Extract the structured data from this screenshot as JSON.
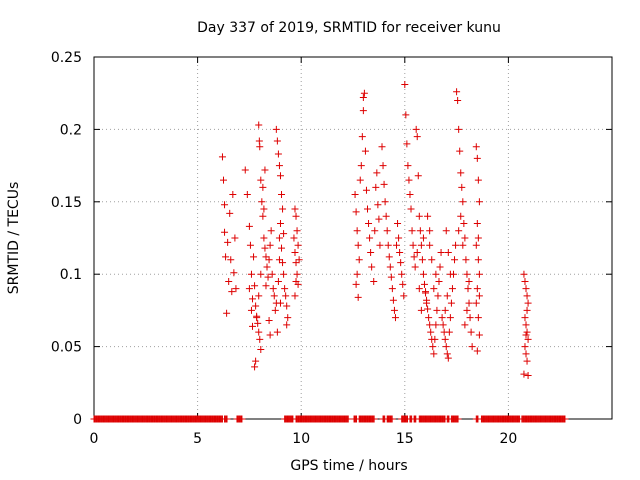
{
  "chart_data": {
    "type": "scatter",
    "title": "Day 337 of 2019, SRMTID for receiver kunu",
    "xlabel": "GPS time / hours",
    "ylabel": "SRMTID / TECUs",
    "xlim": [
      0,
      25
    ],
    "ylim": [
      0,
      0.25
    ],
    "xticks": [
      0,
      5,
      10,
      15,
      20
    ],
    "xtick_labels": [
      "0",
      "5",
      "10",
      "15",
      "20"
    ],
    "yticks": [
      0,
      0.05,
      0.1,
      0.15,
      0.2,
      0.25
    ],
    "ytick_labels": [
      "0",
      "0.05",
      "0.1",
      "0.15",
      "0.2",
      "0.25"
    ],
    "grid": true,
    "marker": "+",
    "color": "#dd0000",
    "series": [
      {
        "name": "SRMTID",
        "points": [
          [
            6.2,
            0.181
          ],
          [
            6.25,
            0.165
          ],
          [
            6.3,
            0.148
          ],
          [
            6.3,
            0.129
          ],
          [
            6.35,
            0.112
          ],
          [
            6.4,
            0.073
          ],
          [
            6.45,
            0.122
          ],
          [
            6.5,
            0.095
          ],
          [
            6.55,
            0.142
          ],
          [
            6.6,
            0.11
          ],
          [
            6.65,
            0.088
          ],
          [
            6.7,
            0.155
          ],
          [
            6.75,
            0.101
          ],
          [
            6.8,
            0.125
          ],
          [
            6.85,
            0.09
          ],
          [
            7.3,
            0.172
          ],
          [
            7.4,
            0.155
          ],
          [
            7.5,
            0.133
          ],
          [
            7.55,
            0.12
          ],
          [
            7.6,
            0.1
          ],
          [
            7.65,
            0.083
          ],
          [
            7.7,
            0.112
          ],
          [
            7.75,
            0.092
          ],
          [
            7.8,
            0.078
          ],
          [
            7.85,
            0.071
          ],
          [
            7.9,
            0.066
          ],
          [
            7.95,
            0.06
          ],
          [
            8.0,
            0.055
          ],
          [
            8.05,
            0.048
          ],
          [
            7.75,
            0.036
          ],
          [
            7.8,
            0.04
          ],
          [
            7.85,
            0.07
          ],
          [
            7.6,
            0.075
          ],
          [
            7.5,
            0.09
          ],
          [
            7.65,
            0.064
          ],
          [
            7.95,
            0.085
          ],
          [
            8.05,
            0.1
          ],
          [
            7.95,
            0.203
          ],
          [
            7.98,
            0.192
          ],
          [
            8.0,
            0.188
          ],
          [
            8.05,
            0.165
          ],
          [
            8.1,
            0.15
          ],
          [
            8.15,
            0.14
          ],
          [
            8.2,
            0.125
          ],
          [
            8.25,
            0.118
          ],
          [
            8.3,
            0.112
          ],
          [
            8.35,
            0.105
          ],
          [
            8.4,
            0.098
          ],
          [
            8.45,
            0.11
          ],
          [
            8.5,
            0.12
          ],
          [
            8.55,
            0.13
          ],
          [
            8.6,
            0.1
          ],
          [
            8.65,
            0.09
          ],
          [
            8.7,
            0.085
          ],
          [
            8.75,
            0.075
          ],
          [
            8.8,
            0.08
          ],
          [
            8.85,
            0.06
          ],
          [
            8.5,
            0.058
          ],
          [
            8.45,
            0.068
          ],
          [
            8.3,
            0.092
          ],
          [
            8.2,
            0.145
          ],
          [
            8.25,
            0.172
          ],
          [
            8.15,
            0.16
          ],
          [
            8.8,
            0.2
          ],
          [
            8.85,
            0.192
          ],
          [
            8.9,
            0.183
          ],
          [
            8.95,
            0.175
          ],
          [
            9.0,
            0.168
          ],
          [
            9.05,
            0.155
          ],
          [
            9.1,
            0.145
          ],
          [
            9.0,
            0.135
          ],
          [
            8.95,
            0.125
          ],
          [
            9.05,
            0.118
          ],
          [
            9.1,
            0.108
          ],
          [
            9.15,
            0.1
          ],
          [
            9.2,
            0.09
          ],
          [
            9.25,
            0.085
          ],
          [
            9.3,
            0.078
          ],
          [
            9.35,
            0.07
          ],
          [
            9.3,
            0.065
          ],
          [
            9.0,
            0.08
          ],
          [
            8.9,
            0.095
          ],
          [
            8.95,
            0.11
          ],
          [
            9.15,
            0.128
          ],
          [
            9.7,
            0.145
          ],
          [
            9.75,
            0.14
          ],
          [
            9.8,
            0.13
          ],
          [
            9.85,
            0.12
          ],
          [
            9.7,
            0.115
          ],
          [
            9.75,
            0.108
          ],
          [
            9.8,
            0.1
          ],
          [
            9.85,
            0.093
          ],
          [
            9.7,
            0.085
          ],
          [
            9.75,
            0.095
          ],
          [
            9.9,
            0.11
          ],
          [
            9.65,
            0.125
          ],
          [
            12.6,
            0.155
          ],
          [
            12.65,
            0.143
          ],
          [
            12.7,
            0.13
          ],
          [
            12.75,
            0.12
          ],
          [
            12.8,
            0.11
          ],
          [
            12.7,
            0.1
          ],
          [
            12.65,
            0.093
          ],
          [
            12.75,
            0.084
          ],
          [
            12.85,
            0.165
          ],
          [
            12.9,
            0.175
          ],
          [
            12.95,
            0.195
          ],
          [
            13.0,
            0.213
          ],
          [
            13.0,
            0.222
          ],
          [
            13.05,
            0.225
          ],
          [
            13.1,
            0.185
          ],
          [
            13.15,
            0.158
          ],
          [
            13.2,
            0.145
          ],
          [
            13.25,
            0.135
          ],
          [
            13.3,
            0.125
          ],
          [
            13.35,
            0.115
          ],
          [
            13.4,
            0.105
          ],
          [
            13.5,
            0.095
          ],
          [
            13.55,
            0.13
          ],
          [
            13.6,
            0.16
          ],
          [
            13.65,
            0.17
          ],
          [
            13.7,
            0.148
          ],
          [
            13.75,
            0.138
          ],
          [
            13.8,
            0.12
          ],
          [
            13.9,
            0.188
          ],
          [
            13.95,
            0.175
          ],
          [
            14.0,
            0.162
          ],
          [
            14.05,
            0.15
          ],
          [
            14.1,
            0.14
          ],
          [
            14.15,
            0.13
          ],
          [
            14.2,
            0.12
          ],
          [
            14.25,
            0.112
          ],
          [
            14.3,
            0.105
          ],
          [
            14.35,
            0.098
          ],
          [
            14.4,
            0.09
          ],
          [
            14.45,
            0.082
          ],
          [
            14.5,
            0.075
          ],
          [
            14.55,
            0.07
          ],
          [
            14.6,
            0.12
          ],
          [
            14.65,
            0.135
          ],
          [
            14.7,
            0.125
          ],
          [
            14.75,
            0.115
          ],
          [
            14.8,
            0.108
          ],
          [
            14.85,
            0.1
          ],
          [
            14.9,
            0.093
          ],
          [
            14.95,
            0.085
          ],
          [
            15.0,
            0.231
          ],
          [
            15.05,
            0.21
          ],
          [
            15.1,
            0.19
          ],
          [
            15.15,
            0.175
          ],
          [
            15.2,
            0.165
          ],
          [
            15.25,
            0.155
          ],
          [
            15.3,
            0.145
          ],
          [
            15.35,
            0.13
          ],
          [
            15.4,
            0.12
          ],
          [
            15.45,
            0.112
          ],
          [
            15.5,
            0.105
          ],
          [
            15.55,
            0.2
          ],
          [
            15.6,
            0.195
          ],
          [
            15.65,
            0.168
          ],
          [
            15.7,
            0.14
          ],
          [
            15.75,
            0.13
          ],
          [
            15.8,
            0.12
          ],
          [
            15.85,
            0.11
          ],
          [
            15.9,
            0.1
          ],
          [
            15.95,
            0.093
          ],
          [
            16.0,
            0.088
          ],
          [
            16.05,
            0.08
          ],
          [
            15.8,
            0.075
          ],
          [
            15.7,
            0.09
          ],
          [
            15.6,
            0.115
          ],
          [
            15.9,
            0.125
          ],
          [
            16.1,
            0.14
          ],
          [
            16.2,
            0.13
          ],
          [
            16.0,
            0.087
          ],
          [
            16.05,
            0.082
          ],
          [
            16.1,
            0.076
          ],
          [
            16.15,
            0.07
          ],
          [
            16.2,
            0.065
          ],
          [
            16.25,
            0.06
          ],
          [
            16.3,
            0.055
          ],
          [
            16.35,
            0.05
          ],
          [
            16.4,
            0.045
          ],
          [
            16.45,
            0.055
          ],
          [
            16.5,
            0.065
          ],
          [
            16.55,
            0.075
          ],
          [
            16.6,
            0.085
          ],
          [
            16.65,
            0.095
          ],
          [
            16.7,
            0.105
          ],
          [
            16.75,
            0.115
          ],
          [
            16.5,
            0.1
          ],
          [
            16.4,
            0.09
          ],
          [
            16.3,
            0.11
          ],
          [
            16.2,
            0.12
          ],
          [
            16.8,
            0.07
          ],
          [
            16.85,
            0.065
          ],
          [
            16.9,
            0.06
          ],
          [
            16.95,
            0.055
          ],
          [
            17.0,
            0.05
          ],
          [
            17.05,
            0.045
          ],
          [
            17.1,
            0.042
          ],
          [
            17.15,
            0.06
          ],
          [
            17.2,
            0.07
          ],
          [
            17.25,
            0.08
          ],
          [
            17.3,
            0.09
          ],
          [
            17.35,
            0.1
          ],
          [
            17.4,
            0.11
          ],
          [
            17.45,
            0.12
          ],
          [
            17.0,
            0.13
          ],
          [
            17.1,
            0.115
          ],
          [
            17.2,
            0.1
          ],
          [
            17.05,
            0.085
          ],
          [
            16.95,
            0.075
          ],
          [
            17.5,
            0.226
          ],
          [
            17.55,
            0.22
          ],
          [
            17.6,
            0.2
          ],
          [
            17.65,
            0.185
          ],
          [
            17.7,
            0.17
          ],
          [
            17.75,
            0.16
          ],
          [
            17.8,
            0.15
          ],
          [
            17.85,
            0.135
          ],
          [
            17.9,
            0.125
          ],
          [
            17.95,
            0.11
          ],
          [
            18.0,
            0.1
          ],
          [
            18.05,
            0.09
          ],
          [
            18.1,
            0.08
          ],
          [
            18.15,
            0.07
          ],
          [
            18.2,
            0.06
          ],
          [
            18.25,
            0.05
          ],
          [
            17.7,
            0.14
          ],
          [
            17.6,
            0.13
          ],
          [
            17.8,
            0.12
          ],
          [
            18.0,
            0.075
          ],
          [
            17.9,
            0.065
          ],
          [
            18.1,
            0.095
          ],
          [
            18.45,
            0.188
          ],
          [
            18.5,
            0.18
          ],
          [
            18.55,
            0.165
          ],
          [
            18.6,
            0.15
          ],
          [
            18.5,
            0.135
          ],
          [
            18.45,
            0.12
          ],
          [
            18.55,
            0.11
          ],
          [
            18.6,
            0.1
          ],
          [
            18.5,
            0.09
          ],
          [
            18.45,
            0.08
          ],
          [
            18.55,
            0.07
          ],
          [
            18.6,
            0.058
          ],
          [
            18.5,
            0.047
          ],
          [
            18.55,
            0.125
          ],
          [
            18.6,
            0.085
          ],
          [
            20.75,
            0.1
          ],
          [
            20.8,
            0.095
          ],
          [
            20.85,
            0.09
          ],
          [
            20.9,
            0.085
          ],
          [
            20.95,
            0.08
          ],
          [
            20.8,
            0.07
          ],
          [
            20.85,
            0.065
          ],
          [
            20.9,
            0.06
          ],
          [
            20.95,
            0.055
          ],
          [
            20.8,
            0.05
          ],
          [
            20.85,
            0.045
          ],
          [
            20.9,
            0.04
          ],
          [
            20.75,
            0.031
          ],
          [
            20.95,
            0.03
          ],
          [
            20.85,
            0.058
          ],
          [
            20.9,
            0.075
          ]
        ]
      }
    ],
    "zero_baseline_segments": [
      [
        0.0,
        6.2
      ],
      [
        6.3,
        6.45
      ],
      [
        6.9,
        7.15
      ],
      [
        9.2,
        9.6
      ],
      [
        9.75,
        12.3
      ],
      [
        12.55,
        12.7
      ],
      [
        12.8,
        13.55
      ],
      [
        13.95,
        14.05
      ],
      [
        14.15,
        14.4
      ],
      [
        14.85,
        15.15
      ],
      [
        15.25,
        15.35
      ],
      [
        15.45,
        15.55
      ],
      [
        15.7,
        16.95
      ],
      [
        17.05,
        17.15
      ],
      [
        17.25,
        17.6
      ],
      [
        18.45,
        18.55
      ],
      [
        18.7,
        20.55
      ],
      [
        20.65,
        22.75
      ]
    ]
  }
}
